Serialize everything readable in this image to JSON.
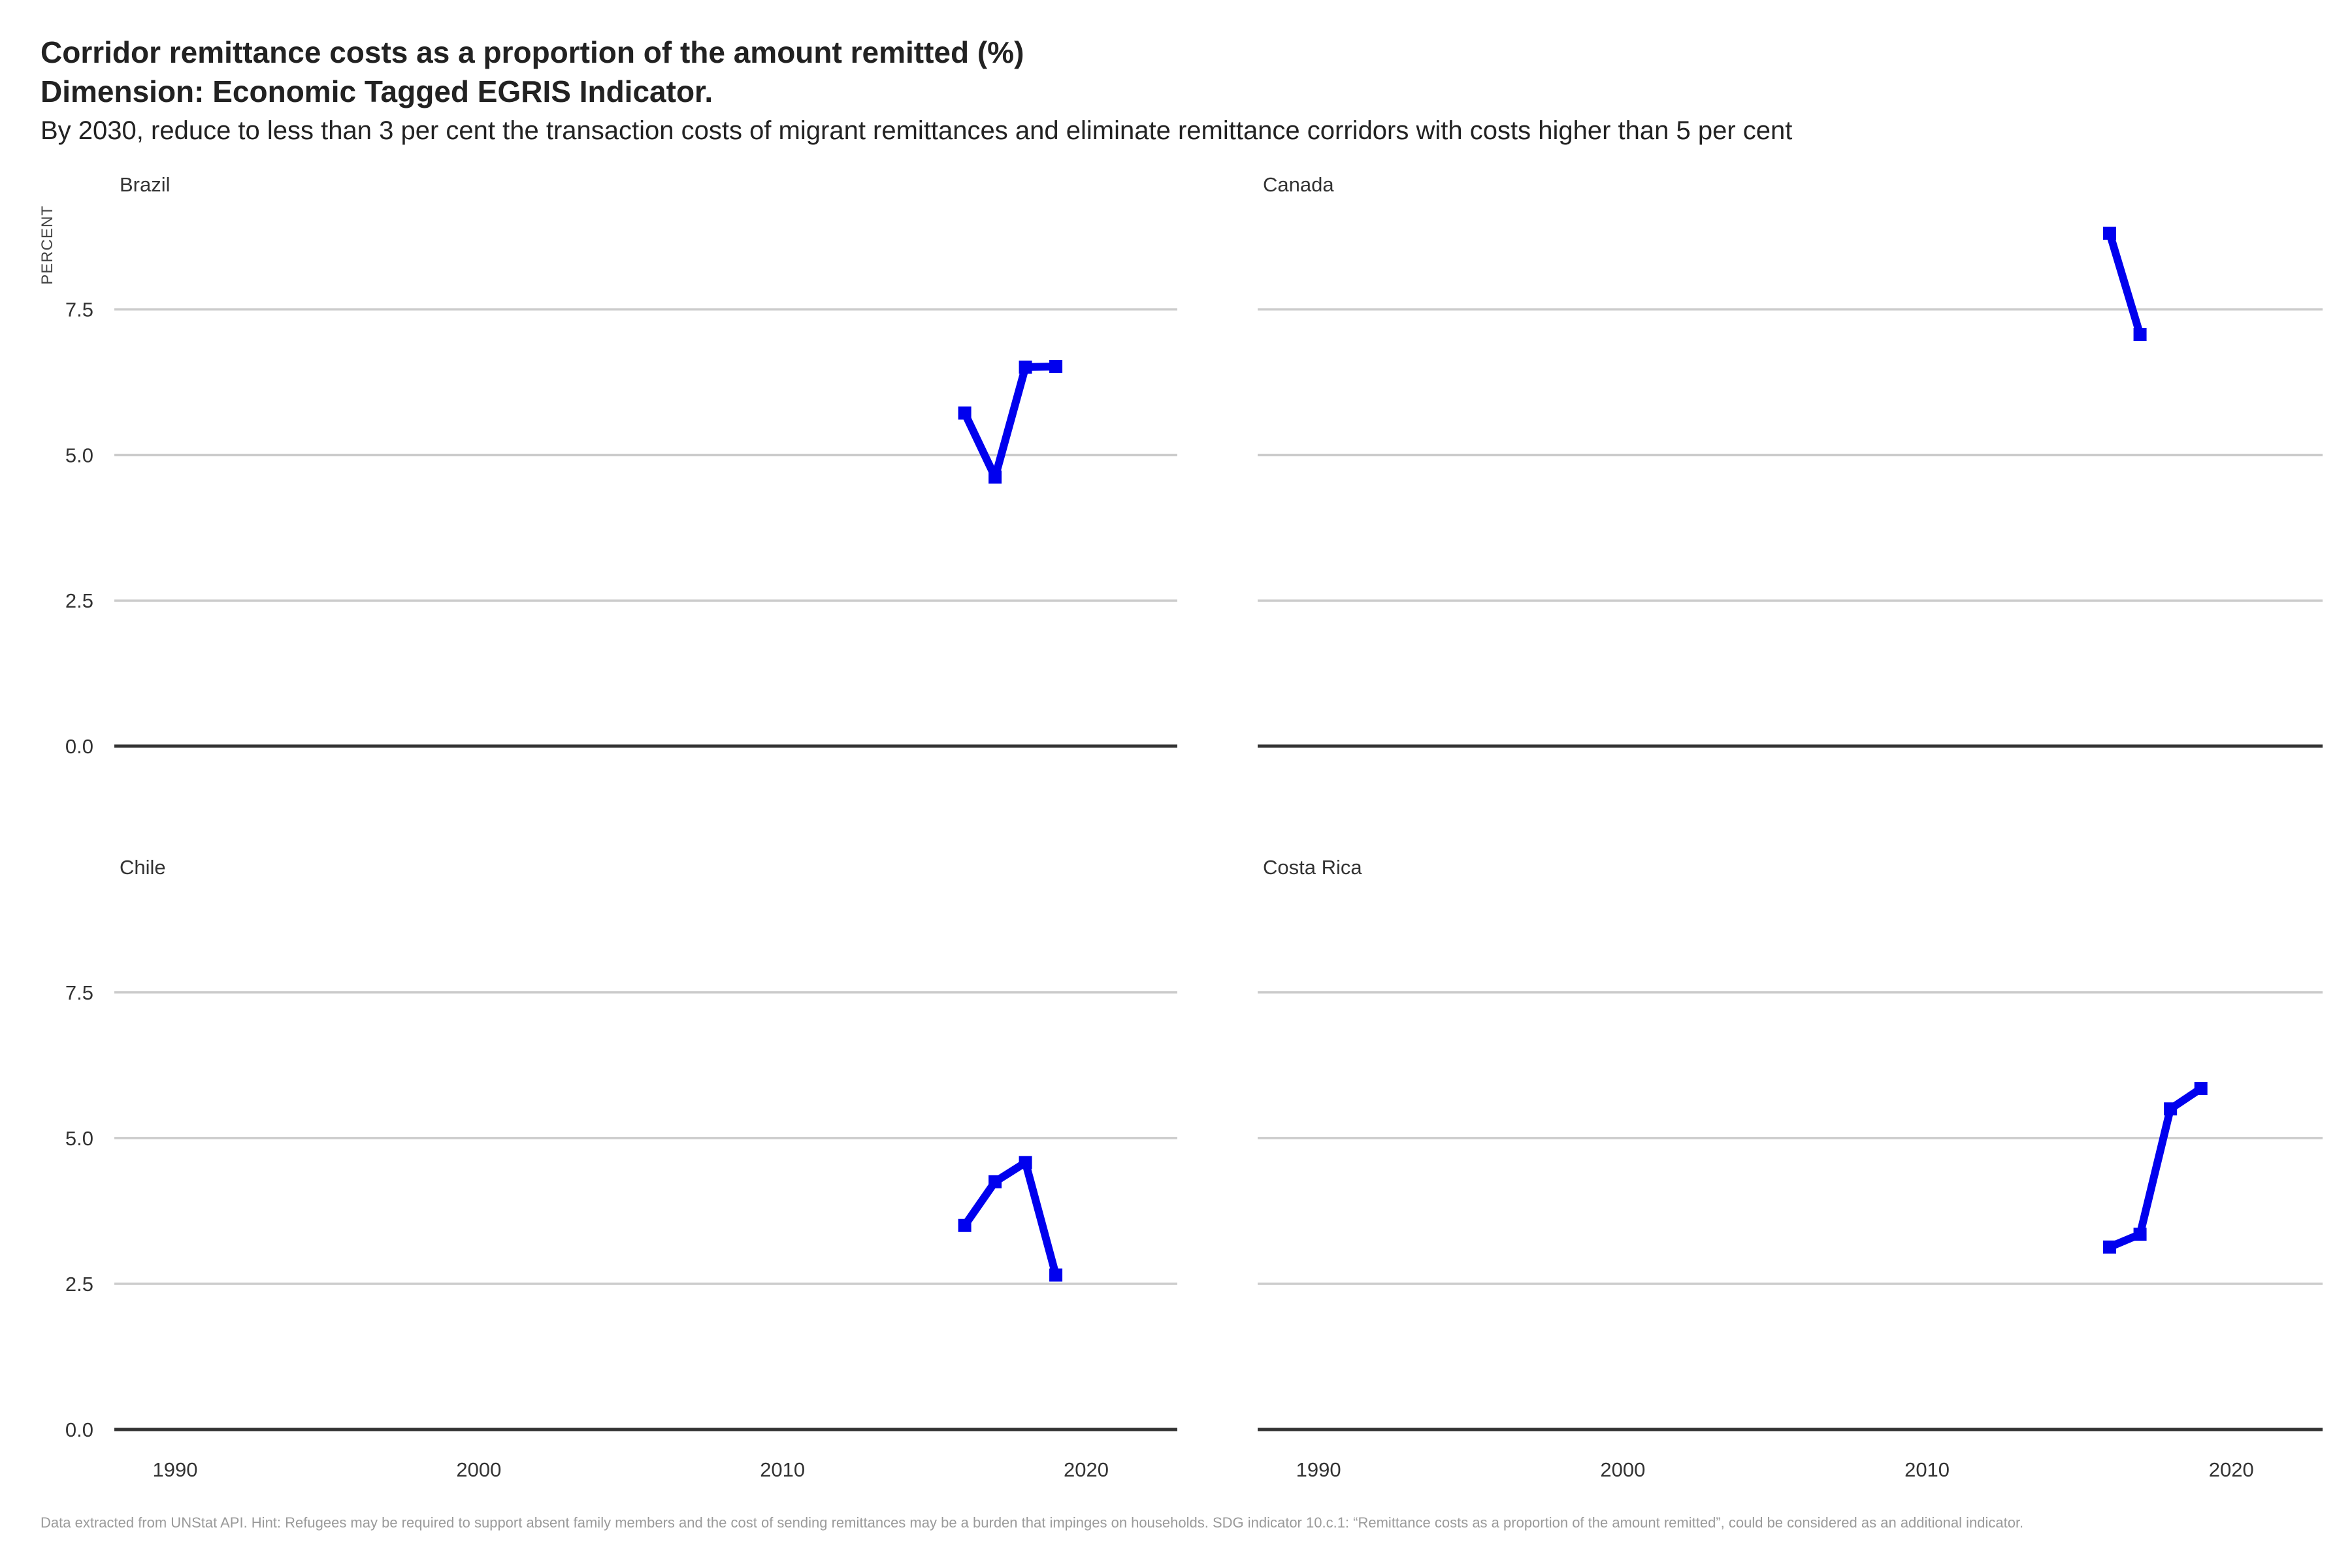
{
  "header": {
    "title_line1": "Corridor remittance costs as a proportion of the amount remitted (%)",
    "title_line2": "Dimension: Economic Tagged EGRIS Indicator.",
    "subtitle": "By 2030, reduce to less than 3 per cent the transaction costs of migrant remittances and eliminate remittance corridors with costs higher than 5 per cent"
  },
  "caption": "Data extracted from UNStat API. Hint: Refugees may be required to support absent family members and the cost of sending remittances may be a burden that impinges on households. SDG indicator 10.c.1: “Remittance costs as a proportion of the amount remitted”, could be considered as an additional indicator.",
  "colors": {
    "series": "#0000ee",
    "grid": "#cccccc",
    "baseline": "#333333"
  },
  "chart_data": {
    "type": "line",
    "facets": [
      "Brazil",
      "Canada",
      "Chile",
      "Costa Rica"
    ],
    "ylabel": "PERCENT",
    "xlabel": "",
    "xlim": [
      1988,
      2023
    ],
    "ylim": [
      0,
      9
    ],
    "x_ticks": [
      1990,
      2000,
      2010,
      2020
    ],
    "y_ticks": [
      0.0,
      2.5,
      5.0,
      7.5
    ],
    "x_tick_labels": [
      "1990",
      "2000",
      "2010",
      "2020"
    ],
    "y_tick_labels": [
      "0.0",
      "2.5",
      "5.0",
      "7.5"
    ],
    "grid": true,
    "series": [
      {
        "facet": "Brazil",
        "x": [
          2016,
          2017,
          2018,
          2019
        ],
        "y": [
          5.72,
          4.62,
          6.51,
          6.52
        ]
      },
      {
        "facet": "Canada",
        "x": [
          2016,
          2017
        ],
        "y": [
          8.81,
          7.07
        ]
      },
      {
        "facet": "Chile",
        "x": [
          2016,
          2017,
          2018,
          2019
        ],
        "y": [
          3.5,
          4.25,
          4.58,
          2.65
        ]
      },
      {
        "facet": "Costa Rica",
        "x": [
          2016,
          2017,
          2018,
          2019
        ],
        "y": [
          3.13,
          3.35,
          5.5,
          5.85
        ]
      }
    ]
  }
}
